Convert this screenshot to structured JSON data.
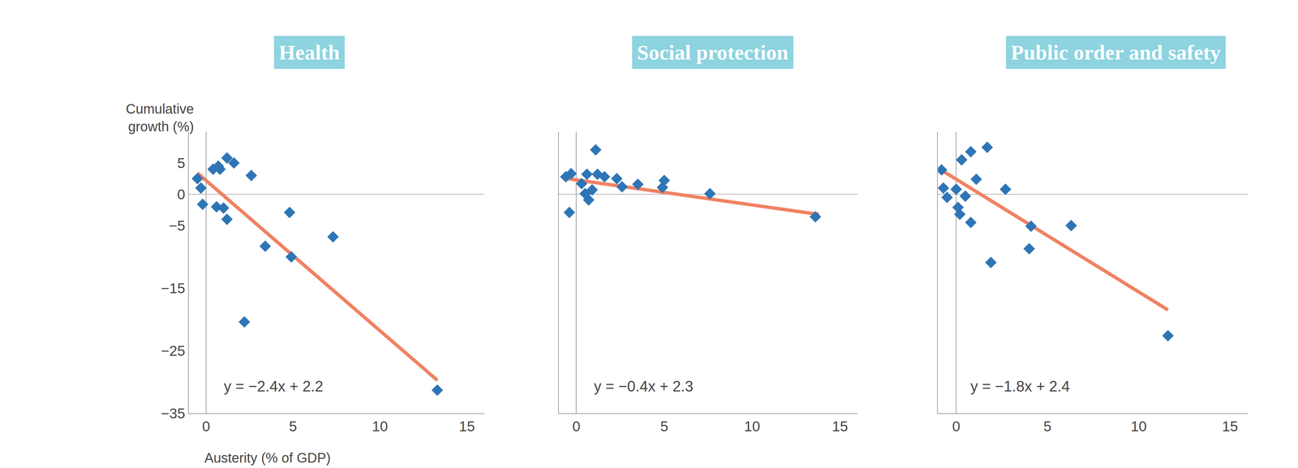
{
  "chart_data": [
    {
      "type": "scatter",
      "title": "Health",
      "y_label": "Cumulative growth (%)",
      "x_label": "Austerity (% of GDP)",
      "x": [
        -0.5,
        -0.3,
        -0.2,
        0.4,
        0.7,
        0.8,
        1.2,
        1.6,
        0.6,
        1.0,
        1.2,
        2.6,
        2.2,
        3.4,
        4.8,
        4.9,
        7.3,
        13.3
      ],
      "values": [
        2.5,
        1.0,
        -1.6,
        4.0,
        4.5,
        4.0,
        5.8,
        5.0,
        -2.0,
        -2.2,
        -4.0,
        3.0,
        -20.4,
        -8.3,
        -2.9,
        -10.0,
        -6.8,
        -31.3
      ],
      "color": "#2e75b6",
      "marker": "diamond",
      "trend": {
        "slope": -2.4,
        "intercept": 2.2,
        "x": [
          -0.5,
          13.3
        ],
        "color": "#f08262"
      },
      "annotation": "y = −2.4x + 2.2",
      "xlim": [
        -1,
        16
      ],
      "ylim": [
        -35,
        10
      ],
      "xticks": [
        0,
        5,
        10,
        15
      ],
      "yticks": [
        5,
        0,
        {
          "value": -5,
          "label": "−5"
        },
        {
          "value": -15,
          "label": "−15"
        },
        {
          "value": -25,
          "label": "−25"
        },
        {
          "value": -35,
          "label": "−35"
        }
      ],
      "grid": false
    },
    {
      "type": "scatter",
      "title": "Social protection",
      "x": [
        -0.6,
        -0.3,
        -0.4,
        0.3,
        0.5,
        0.6,
        0.7,
        0.9,
        1.1,
        1.2,
        1.6,
        2.3,
        2.6,
        3.5,
        5.0,
        4.9,
        7.6,
        13.6
      ],
      "values": [
        2.8,
        3.3,
        -2.9,
        1.7,
        0.1,
        3.2,
        -0.9,
        0.7,
        7.1,
        3.2,
        2.8,
        2.5,
        1.2,
        1.6,
        2.2,
        1.1,
        0.1,
        -3.6
      ],
      "color": "#2e75b6",
      "marker": "diamond",
      "trend": {
        "slope": -0.4,
        "intercept": 2.3,
        "x": [
          -0.5,
          13.8
        ],
        "color": "#f08262"
      },
      "annotation": "y = −0.4x + 2.3",
      "xlim": [
        -1,
        16
      ],
      "ylim": [
        -35,
        10
      ],
      "xticks": [
        0,
        5,
        10,
        15
      ],
      "tick_labels": "x",
      "grid": false
    },
    {
      "type": "scatter",
      "title": "Public order and safety",
      "x": [
        -0.8,
        -0.7,
        -0.5,
        0.0,
        0.1,
        0.2,
        0.3,
        0.5,
        0.8,
        0.8,
        1.1,
        1.7,
        1.9,
        2.7,
        4.1,
        4.0,
        6.3,
        11.6
      ],
      "values": [
        3.9,
        1.0,
        -0.5,
        0.8,
        -2.1,
        -3.2,
        5.5,
        -0.3,
        6.8,
        -4.5,
        2.4,
        7.5,
        -10.9,
        0.8,
        -5.1,
        -8.7,
        -5.0,
        -22.6
      ],
      "color": "#2e75b6",
      "marker": "diamond",
      "trend": {
        "slope": -1.8,
        "intercept": 2.4,
        "x": [
          -0.8,
          11.6
        ],
        "color": "#f08262"
      },
      "annotation": "y = −1.8x + 2.4",
      "xlim": [
        -1,
        16
      ],
      "ylim": [
        -35,
        10
      ],
      "xticks": [
        0,
        5,
        10,
        15
      ],
      "tick_labels": "x",
      "grid": false
    }
  ]
}
